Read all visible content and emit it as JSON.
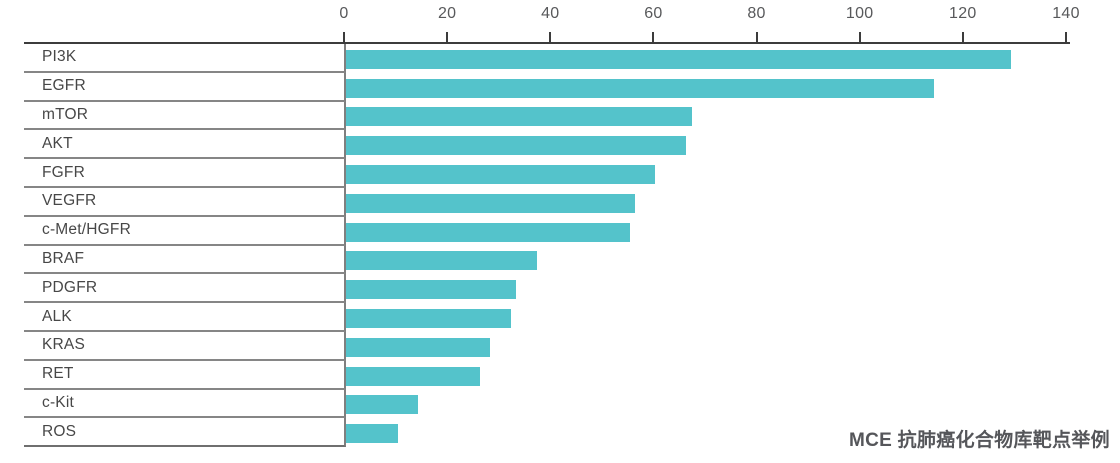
{
  "caption": "MCE 抗肺癌化合物库靶点举例",
  "colors": {
    "bar": "#54c3cb",
    "axis_line": "#3c3c3c",
    "row_separator": "#868686",
    "tick_label": "#58595b",
    "category_label": "#474747",
    "caption_text": "#55565a"
  },
  "chart_data": {
    "type": "bar",
    "orientation": "horizontal",
    "title": "MCE 抗肺癌化合物库靶点举例",
    "categories": [
      "PI3K",
      "EGFR",
      "mTOR",
      "AKT",
      "FGFR",
      "VEGFR",
      "c-Met/HGFR",
      "BRAF",
      "PDGFR",
      "ALK",
      "KRAS",
      "RET",
      "c-Kit",
      "ROS"
    ],
    "values": [
      129,
      114,
      67,
      66,
      60,
      56,
      55,
      37,
      33,
      32,
      28,
      26,
      14,
      10
    ],
    "x_ticks": [
      0,
      20,
      40,
      60,
      80,
      100,
      120,
      140
    ],
    "xlim": [
      0,
      140
    ],
    "xlabel": "",
    "ylabel": "",
    "axis_position": "top",
    "legend": "none",
    "grid": "horizontal row separators in category column only"
  }
}
